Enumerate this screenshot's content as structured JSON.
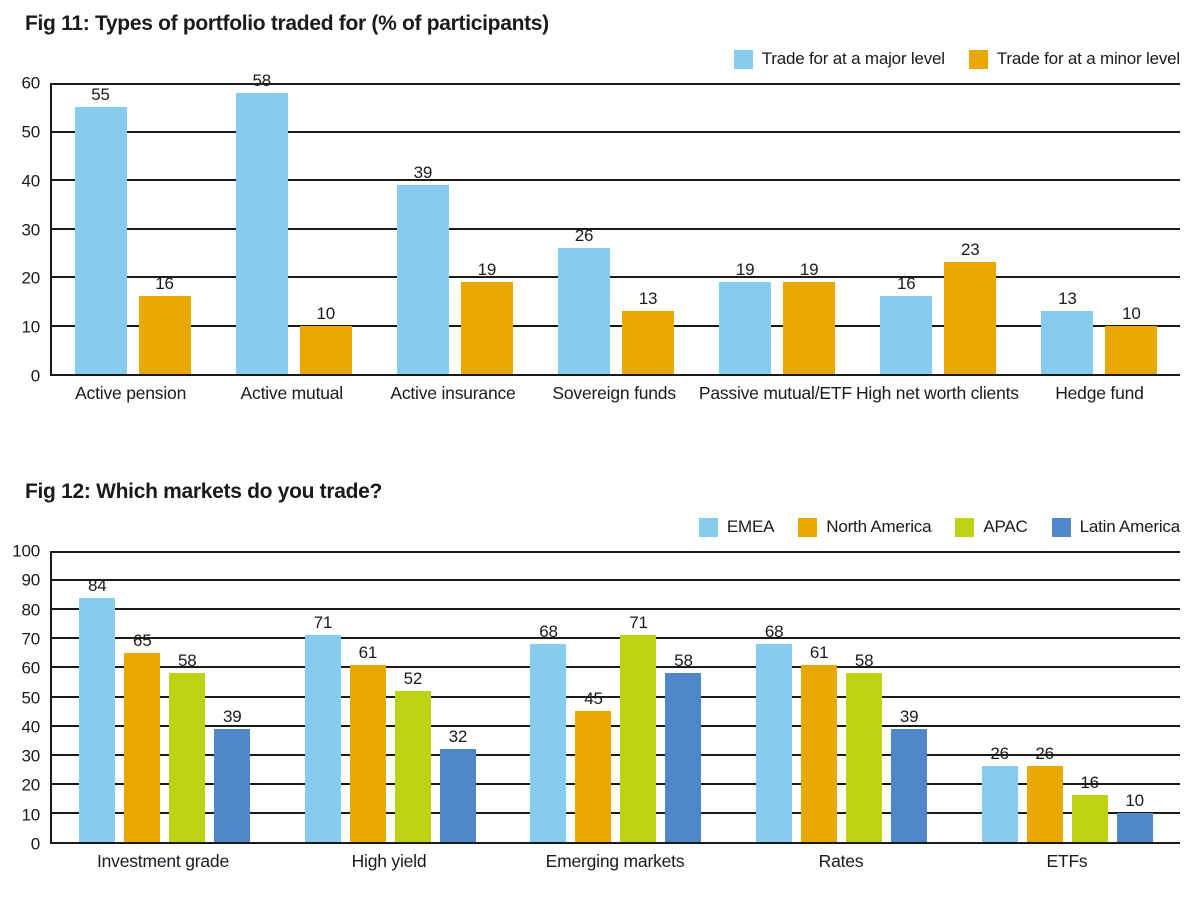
{
  "colors": {
    "text": "#1a1a1a",
    "axis": "#1a1a1a",
    "background": "#ffffff",
    "series_major_blue": "#87CBEE",
    "series_orange": "#E8A800",
    "series_green": "#BFD211",
    "series_dark_blue": "#4E86C6"
  },
  "chart_data": [
    {
      "type": "bar",
      "title": "Fig 11: Types of portfolio traded for (% of participants)",
      "categories": [
        "Active pension",
        "Active mutual",
        "Active insurance",
        "Sovereign funds",
        "Passive mutual/ETF",
        "High net worth clients",
        "Hedge fund"
      ],
      "series": [
        {
          "name": "Trade for at a major level",
          "color": "#87CBEE",
          "values": [
            55,
            58,
            39,
            26,
            19,
            16,
            13
          ]
        },
        {
          "name": "Trade for at a minor level",
          "color": "#E8A800",
          "values": [
            16,
            10,
            19,
            13,
            19,
            23,
            10
          ]
        }
      ],
      "xlabel": "",
      "ylabel": "",
      "ylim": [
        0,
        60
      ],
      "ytick_step": 10,
      "grid": true,
      "legend_position": "top-right",
      "bar_value_labels": true
    },
    {
      "type": "bar",
      "title": "Fig 12: Which markets do you trade?",
      "categories": [
        "Investment grade",
        "High yield",
        "Emerging markets",
        "Rates",
        "ETFs"
      ],
      "series": [
        {
          "name": "EMEA",
          "color": "#87CBEE",
          "values": [
            84,
            71,
            68,
            68,
            26
          ]
        },
        {
          "name": "North America",
          "color": "#E8A800",
          "values": [
            65,
            61,
            45,
            61,
            26
          ]
        },
        {
          "name": "APAC",
          "color": "#BFD211",
          "values": [
            58,
            52,
            71,
            58,
            16
          ]
        },
        {
          "name": "Latin America",
          "color": "#4E86C6",
          "values": [
            39,
            32,
            58,
            39,
            10
          ]
        }
      ],
      "xlabel": "",
      "ylabel": "",
      "ylim": [
        0,
        100
      ],
      "ytick_step": 10,
      "grid": true,
      "legend_position": "top-right",
      "bar_value_labels": true
    }
  ]
}
